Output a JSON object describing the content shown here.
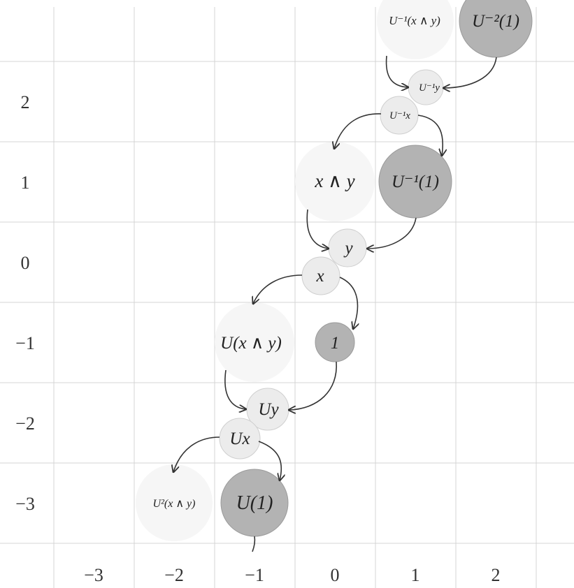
{
  "x_axis_labels": [
    "−3",
    "−2",
    "−1",
    "0",
    "1",
    "2"
  ],
  "y_axis_labels": [
    "2",
    "1",
    "0",
    "−1",
    "−2",
    "−3"
  ],
  "nodes": [
    {
      "id": "u-inv-x-and-y",
      "label": "U⁻¹(x ∧ y)",
      "kind": "faint",
      "color": "#f6f6f6"
    },
    {
      "id": "u-inv2-1",
      "label": "U⁻²(1)",
      "kind": "unit",
      "color": "#b3b3b3"
    },
    {
      "id": "u-inv-y",
      "label": "U⁻¹y",
      "kind": "light",
      "color": "#ececec"
    },
    {
      "id": "u-inv-x",
      "label": "U⁻¹x",
      "kind": "light",
      "color": "#ececec"
    },
    {
      "id": "x-and-y",
      "label": "x ∧ y",
      "kind": "faint",
      "color": "#f6f6f6"
    },
    {
      "id": "u-inv-1",
      "label": "U⁻¹(1)",
      "kind": "unit",
      "color": "#b3b3b3"
    },
    {
      "id": "y",
      "label": "y",
      "kind": "light",
      "color": "#ececec"
    },
    {
      "id": "x",
      "label": "x",
      "kind": "light",
      "color": "#ececec"
    },
    {
      "id": "u-x-and-y",
      "label": "U(x ∧ y)",
      "kind": "faint",
      "color": "#f6f6f6"
    },
    {
      "id": "one",
      "label": "1",
      "kind": "unit",
      "color": "#b3b3b3"
    },
    {
      "id": "uy",
      "label": "Uy",
      "kind": "light",
      "color": "#ececec"
    },
    {
      "id": "ux",
      "label": "Ux",
      "kind": "light",
      "color": "#ececec"
    },
    {
      "id": "u2-x-and-y",
      "label": "U²(x ∧ y)",
      "kind": "faint",
      "color": "#f6f6f6"
    },
    {
      "id": "u-1",
      "label": "U(1)",
      "kind": "unit",
      "color": "#b3b3b3"
    }
  ],
  "colors": {
    "grid": "#d4d4d4",
    "arrow": "#333333",
    "unit_fill": "#b3b3b3",
    "light_fill": "#ececec",
    "faint_fill": "#f6f6f6"
  }
}
